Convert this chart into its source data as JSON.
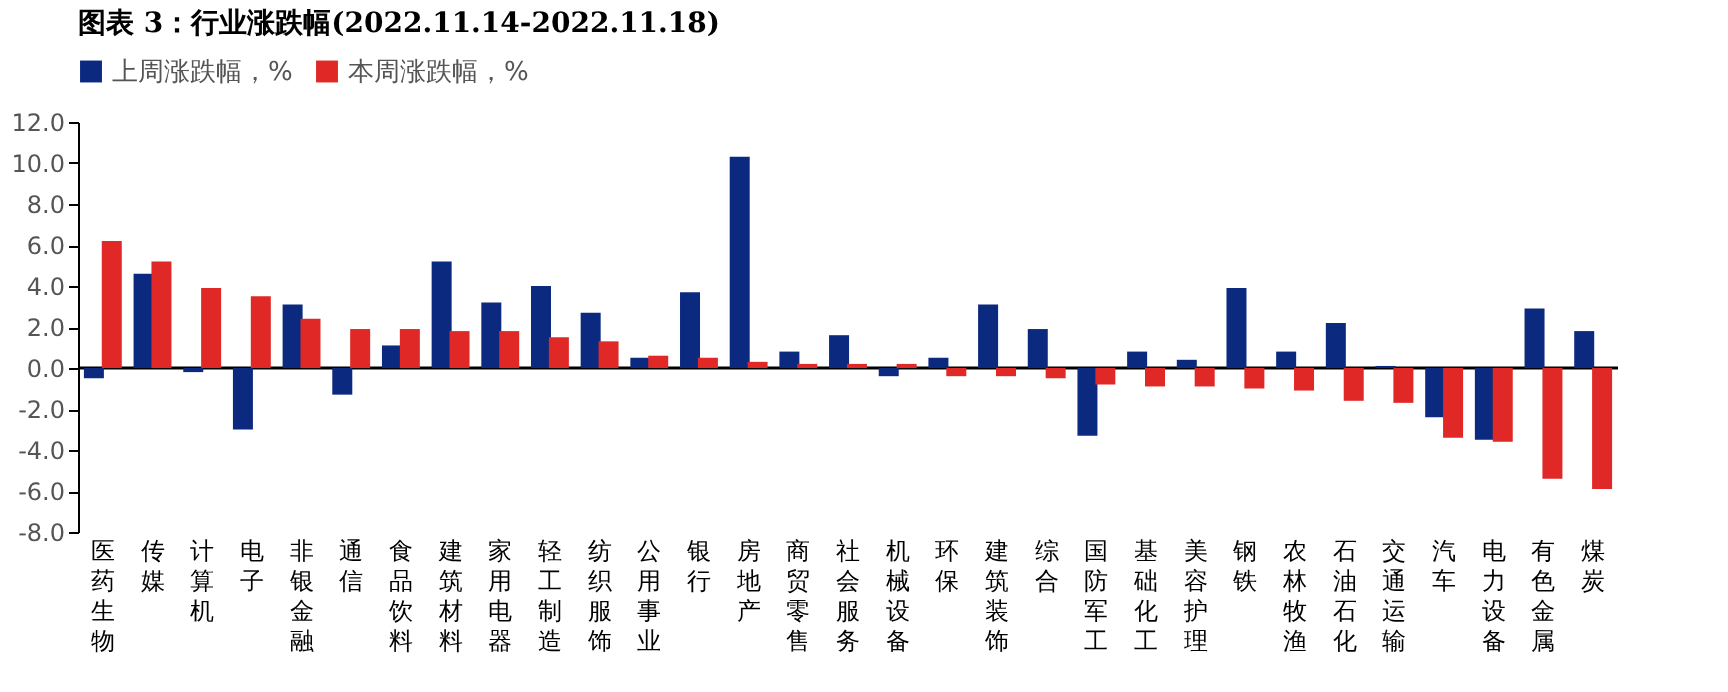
{
  "chart_data": {
    "type": "bar",
    "title": "图表 3：行业涨跌幅(2022.11.14-2022.11.18)",
    "categories": [
      "医药生物",
      "传媒",
      "计算机",
      "电子",
      "非银金融",
      "通信",
      "食品饮料",
      "建筑材料",
      "家用电器",
      "轻工制造",
      "纺织服饰",
      "公用事业",
      "银行",
      "房地产",
      "商贸零售",
      "社会服务",
      "机械设备",
      "环保",
      "建筑装饰",
      "综合",
      "国防军工",
      "基础化工",
      "美容护理",
      "钢铁",
      "农林牧渔",
      "石油石化",
      "交通运输",
      "汽车",
      "电力设备",
      "有色金属",
      "煤炭"
    ],
    "series": [
      {
        "name": "上周涨跌幅，%",
        "color": "#0b2a7f",
        "values": [
          -0.5,
          4.6,
          -0.2,
          -3.0,
          3.1,
          -1.3,
          1.1,
          5.2,
          3.2,
          4.0,
          2.7,
          0.5,
          3.7,
          10.3,
          0.8,
          1.6,
          -0.4,
          0.5,
          3.1,
          1.9,
          -3.3,
          0.8,
          0.4,
          3.9,
          0.8,
          2.2,
          0.1,
          -2.4,
          -3.5,
          2.9,
          1.8
        ]
      },
      {
        "name": "本周涨跌幅，%",
        "color": "#e02826",
        "values": [
          6.2,
          5.2,
          3.9,
          3.5,
          2.4,
          1.9,
          1.9,
          1.8,
          1.8,
          1.5,
          1.3,
          0.6,
          0.5,
          0.3,
          0.2,
          0.2,
          0.2,
          -0.4,
          -0.4,
          -0.5,
          -0.8,
          -0.9,
          -0.9,
          -1.0,
          -1.1,
          -1.6,
          -1.7,
          -3.4,
          -3.6,
          -5.4,
          -5.9
        ]
      }
    ],
    "ylim": [
      -8,
      12
    ],
    "yticks": [
      {
        "value": -8,
        "label": "-8.0"
      },
      {
        "value": -6,
        "label": "-6.0"
      },
      {
        "value": -4,
        "label": "-4.0"
      },
      {
        "value": -2,
        "label": "-2.0"
      },
      {
        "value": 0,
        "label": "0.0"
      },
      {
        "value": 2,
        "label": "2.0"
      },
      {
        "value": 4,
        "label": "4.0"
      },
      {
        "value": 6,
        "label": "6.0"
      },
      {
        "value": 8,
        "label": "8.0"
      },
      {
        "value": 10,
        "label": "10.0"
      },
      {
        "value": 12,
        "label": "12.0"
      }
    ],
    "legend": "top"
  }
}
